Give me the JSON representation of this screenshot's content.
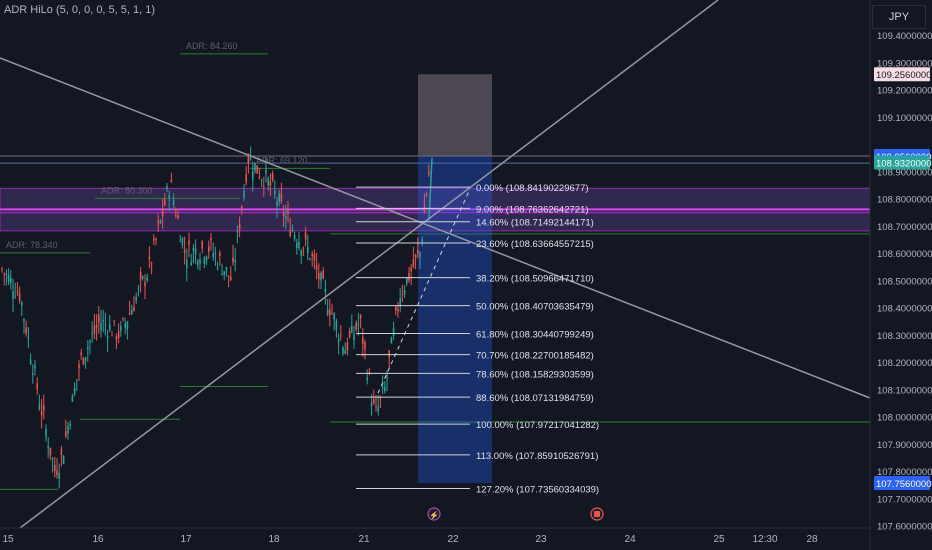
{
  "indicator": {
    "label": "ADR HiLo (5, 0, 0, 0, 5, 5, 1, 1)"
  },
  "currency": "JPY",
  "chart_data": {
    "type": "candlestick",
    "series_name": "",
    "x_ticks": [
      "15",
      "16",
      "17",
      "18",
      "21",
      "22",
      "23",
      "24",
      "25",
      "12:30",
      "28"
    ],
    "y_ticks": [
      "109.4000000000",
      "109.3000000000",
      "109.2000000000",
      "109.1000000000",
      "108.9000000000",
      "108.8000000000",
      "108.7000000000",
      "108.6000000000",
      "108.5000000000",
      "108.4000000000",
      "108.3000000000",
      "108.2000000000",
      "108.1000000000",
      "108.0000000000",
      "107.9000000000",
      "107.8000000000",
      "107.7000000000",
      "107.6000000000"
    ],
    "ylim": [
      107.58,
      109.48
    ],
    "price_tags": [
      {
        "text": "109.2560000000",
        "price": 109.256,
        "style": "pink"
      },
      {
        "text": "108.9560000000",
        "price": 108.956,
        "style": "blue"
      },
      {
        "text": "108.9320000000",
        "price": 108.932,
        "style": "teal"
      },
      {
        "text": "107.7560000000",
        "price": 107.756,
        "style": "blue"
      }
    ],
    "adr_labels": [
      {
        "text": "ADR: 84.260",
        "price": 109.36
      },
      {
        "text": "ADR: 80.300",
        "price": 108.83
      },
      {
        "text": "ADR: 78.340",
        "price": 108.63
      },
      {
        "text": "ADR: 69.120",
        "price": 108.94
      }
    ],
    "fib_levels": [
      {
        "label": "0.00% (108.84190229677)",
        "price": 108.8419
      },
      {
        "label": "9.00% (108.76362642721)",
        "price": 108.7636
      },
      {
        "label": "14.60% (108.71492144171)",
        "price": 108.7149
      },
      {
        "label": "23.60% (108.63664557215)",
        "price": 108.6366
      },
      {
        "label": "38.20% (108.50966471710)",
        "price": 108.5097
      },
      {
        "label": "50.00% (108.40703635479)",
        "price": 108.407
      },
      {
        "label": "61.80% (108.30440799249)",
        "price": 108.3044
      },
      {
        "label": "70.70% (108.22700185482)",
        "price": 108.227
      },
      {
        "label": "78.60% (108.15829303599)",
        "price": 108.1583
      },
      {
        "label": "88.60% (108.07131984759)",
        "price": 108.0713
      },
      {
        "label": "100.00% (107.97217041282)",
        "price": 107.9722
      },
      {
        "label": "113.00% (107.85910526791)",
        "price": 107.8591
      },
      {
        "label": "127.20% (107.73560334039)",
        "price": 107.7356
      }
    ],
    "position": {
      "entry": 108.956,
      "stop": 109.256,
      "target": 107.756,
      "direction": "short"
    },
    "colors": {
      "up": "#26a69a",
      "down": "#ef5350",
      "zone": "#7e57c2",
      "target": "#2962ff",
      "stop": "#7e6f79"
    }
  }
}
